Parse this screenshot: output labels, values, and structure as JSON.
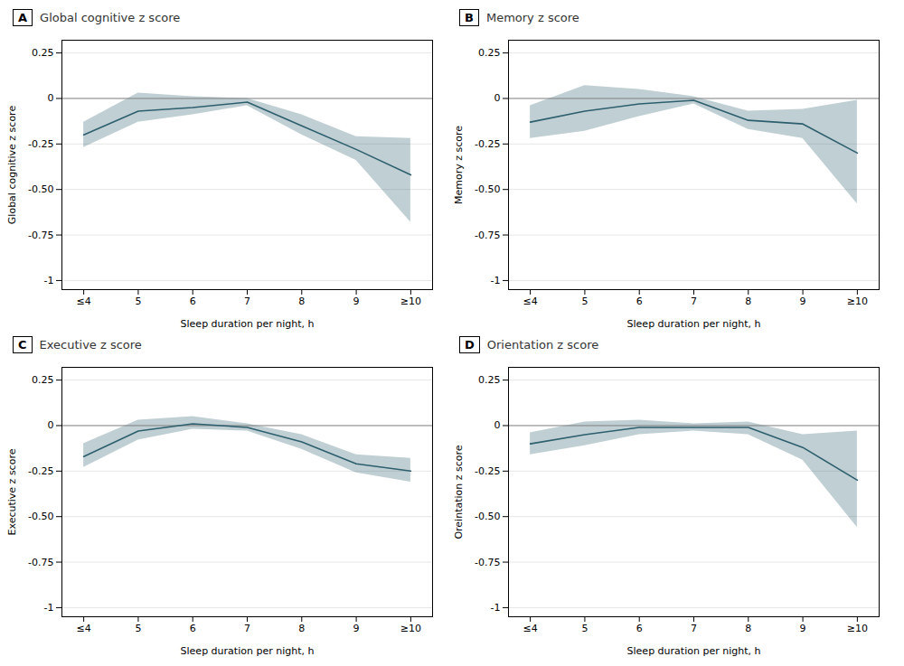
{
  "chart_data": [
    {
      "type": "line",
      "panel_label": "A",
      "title": "Global cognitive z score",
      "xlabel": "Sleep duration per night, h",
      "ylabel": "Global cognitive z score",
      "x": [
        4,
        5,
        6,
        7,
        8,
        9,
        10
      ],
      "values": [
        -0.2,
        -0.07,
        -0.05,
        -0.02,
        -0.15,
        -0.28,
        -0.42
      ],
      "lower": [
        -0.27,
        -0.13,
        -0.09,
        -0.04,
        -0.2,
        -0.34,
        -0.68
      ],
      "upper": [
        -0.13,
        0.03,
        0.01,
        0.0,
        -0.09,
        -0.21,
        -0.22
      ],
      "color": "#2d5f6e",
      "hline": 0,
      "xlim": [
        3.6,
        10.4
      ],
      "xticks": [
        {
          "value": 4,
          "label": "≤4"
        },
        5,
        6,
        7,
        8,
        9,
        {
          "value": 10,
          "label": "≥10"
        }
      ],
      "ylim": [
        -1.05,
        0.32
      ],
      "yticks": [
        -1,
        -0.75,
        {
          "value": -0.5,
          "label": "-0.50"
        },
        -0.25,
        0,
        0.25
      ],
      "grid": true
    },
    {
      "type": "line",
      "panel_label": "B",
      "title": "Memory z score",
      "xlabel": "Sleep duration per night, h",
      "ylabel": "Memory z score",
      "x": [
        4,
        5,
        6,
        7,
        8,
        9,
        10
      ],
      "values": [
        -0.13,
        -0.07,
        -0.03,
        -0.01,
        -0.12,
        -0.14,
        -0.3
      ],
      "lower": [
        -0.22,
        -0.18,
        -0.1,
        -0.03,
        -0.17,
        -0.22,
        -0.58
      ],
      "upper": [
        -0.04,
        0.07,
        0.05,
        0.01,
        -0.07,
        -0.06,
        -0.01
      ],
      "color": "#2d5f6e",
      "hline": 0,
      "xlim": [
        3.6,
        10.4
      ],
      "xticks": [
        {
          "value": 4,
          "label": "≤4"
        },
        5,
        6,
        7,
        8,
        9,
        {
          "value": 10,
          "label": "≥10"
        }
      ],
      "ylim": [
        -1.05,
        0.32
      ],
      "yticks": [
        -1,
        -0.75,
        {
          "value": -0.5,
          "label": "-0.50"
        },
        -0.25,
        0,
        0.25
      ],
      "grid": true
    },
    {
      "type": "line",
      "panel_label": "C",
      "title": "Executive z score",
      "xlabel": "Sleep duration per night, h",
      "ylabel": "Executive z score",
      "x": [
        4,
        5,
        6,
        7,
        8,
        9,
        10
      ],
      "values": [
        -0.17,
        -0.03,
        0.01,
        -0.01,
        -0.09,
        -0.21,
        -0.25
      ],
      "lower": [
        -0.23,
        -0.08,
        -0.02,
        -0.03,
        -0.13,
        -0.26,
        -0.31
      ],
      "upper": [
        -0.1,
        0.03,
        0.05,
        0.01,
        -0.05,
        -0.16,
        -0.18
      ],
      "color": "#2d5f6e",
      "hline": 0,
      "xlim": [
        3.6,
        10.4
      ],
      "xticks": [
        {
          "value": 4,
          "label": "≤4"
        },
        5,
        6,
        7,
        8,
        9,
        {
          "value": 10,
          "label": "≥10"
        }
      ],
      "ylim": [
        -1.05,
        0.32
      ],
      "yticks": [
        -1,
        -0.75,
        {
          "value": -0.5,
          "label": "-0.50"
        },
        -0.25,
        0,
        0.25
      ],
      "grid": true
    },
    {
      "type": "line",
      "panel_label": "D",
      "title": "Orientation z score",
      "xlabel": "Sleep duration per night, h",
      "ylabel": "Oreintation z score",
      "x": [
        4,
        5,
        6,
        7,
        8,
        9,
        10
      ],
      "values": [
        -0.1,
        -0.05,
        -0.01,
        -0.01,
        -0.01,
        -0.12,
        -0.3
      ],
      "lower": [
        -0.16,
        -0.11,
        -0.05,
        -0.03,
        -0.05,
        -0.19,
        -0.56
      ],
      "upper": [
        -0.04,
        0.02,
        0.03,
        0.01,
        0.02,
        -0.05,
        -0.03
      ],
      "color": "#2d5f6e",
      "hline": 0,
      "xlim": [
        3.6,
        10.4
      ],
      "xticks": [
        {
          "value": 4,
          "label": "≤4"
        },
        5,
        6,
        7,
        8,
        9,
        {
          "value": 10,
          "label": "≥10"
        }
      ],
      "ylim": [
        -1.05,
        0.32
      ],
      "yticks": [
        -1,
        -0.75,
        {
          "value": -0.5,
          "label": "-0.50"
        },
        -0.25,
        0,
        0.25
      ],
      "grid": true
    }
  ]
}
